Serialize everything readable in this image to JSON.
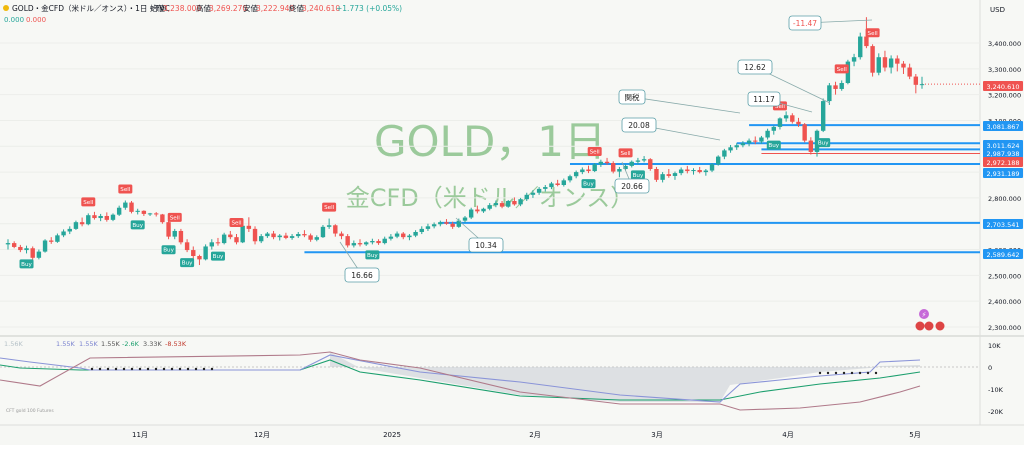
{
  "header": {
    "symbol": "GOLD",
    "title": "GOLD・金CFD（米ドル／オンス）・1日・TVC",
    "ohlc": [
      {
        "label": "始値",
        "value": "3,238.000"
      },
      {
        "label": "高値",
        "value": "3,269.270"
      },
      {
        "label": "安値",
        "value": "3,222.940"
      },
      {
        "label": "終値",
        "value": "3,240.610"
      }
    ],
    "change": "+1.773 (+0.05%)",
    "sub1": "0.000",
    "sub2": "0.000"
  },
  "currency": "USD",
  "watermark": {
    "main": "GOLD，1日",
    "sub": "金CFD（米ドル／オンス）"
  },
  "colors": {
    "up": "#26a69a",
    "down": "#ef5350",
    "line": "#2196f3",
    "watermark": "#8cc28c",
    "indicator_long": "#8a94d8",
    "indicator_short": "#b07a8a",
    "indicator_net": "#1c9f6e"
  },
  "y_axis_ticks": [
    "3,400.000",
    "3,300.000",
    "3,200.000",
    "3,100.000",
    "3,000.000",
    "2,900.000",
    "2,800.000",
    "2,700.000",
    "2,600.000",
    "2,500.000",
    "2,400.000",
    "2,300.000"
  ],
  "price_tags": [
    {
      "text": "3,240.610",
      "color": "#ef5350"
    },
    {
      "text": "3,081.867",
      "color": "#2196f3"
    },
    {
      "text": "3,011.624",
      "color": "#2196f3"
    },
    {
      "text": "2,987.938",
      "color": "#2196f3"
    },
    {
      "text": "2,972.188",
      "color": "#ef5350"
    },
    {
      "text": "2,931.189",
      "color": "#2196f3"
    },
    {
      "text": "2,703.541",
      "color": "#2196f3"
    },
    {
      "text": "2,589.642",
      "color": "#2196f3"
    }
  ],
  "x_axis_labels": [
    "11月",
    "12月",
    "2025",
    "2月",
    "3月",
    "4月",
    "5月"
  ],
  "callouts": [
    {
      "text": "-11.47",
      "color": "#ef5350"
    },
    {
      "text": "12.62",
      "color": "#222"
    },
    {
      "text": "11.17",
      "color": "#222"
    },
    {
      "text": "関税",
      "color": "#222"
    },
    {
      "text": "20.08",
      "color": "#222"
    },
    {
      "text": "20.66",
      "color": "#222"
    },
    {
      "text": "10.34",
      "color": "#222"
    },
    {
      "text": "16.66",
      "color": "#222"
    }
  ],
  "signals": {
    "buy": "Buy",
    "sell": "Sell"
  },
  "indicator": {
    "legend": [
      "1.55K",
      "1.55K",
      "1.55K",
      "-2.6K",
      "3.33K",
      "-8.53K"
    ],
    "legend_faint": "1.56K",
    "source": "CFT gold 100 Futures",
    "ticks": [
      "10K",
      "0",
      "-10K",
      "-20K"
    ]
  },
  "chart_data": {
    "type": "candlestick",
    "interval": "1D",
    "ylim": [
      2290,
      3500
    ],
    "price_lines": [
      3081.867,
      3011.624,
      2987.938,
      2972.188,
      2931.189,
      2703.541,
      2589.642
    ],
    "last_price": 3240.61,
    "candles": [
      {
        "o": 2620,
        "h": 2640,
        "l": 2600,
        "c": 2625
      },
      {
        "o": 2625,
        "h": 2632,
        "l": 2605,
        "c": 2610
      },
      {
        "o": 2610,
        "h": 2618,
        "l": 2590,
        "c": 2598
      },
      {
        "o": 2598,
        "h": 2615,
        "l": 2585,
        "c": 2605
      },
      {
        "o": 2605,
        "h": 2612,
        "l": 2560,
        "c": 2568
      },
      {
        "o": 2568,
        "h": 2600,
        "l": 2562,
        "c": 2592
      },
      {
        "o": 2592,
        "h": 2640,
        "l": 2588,
        "c": 2635
      },
      {
        "o": 2635,
        "h": 2648,
        "l": 2622,
        "c": 2630
      },
      {
        "o": 2630,
        "h": 2662,
        "l": 2626,
        "c": 2655
      },
      {
        "o": 2655,
        "h": 2678,
        "l": 2648,
        "c": 2670
      },
      {
        "o": 2670,
        "h": 2690,
        "l": 2660,
        "c": 2680
      },
      {
        "o": 2680,
        "h": 2712,
        "l": 2676,
        "c": 2706
      },
      {
        "o": 2706,
        "h": 2724,
        "l": 2690,
        "c": 2698
      },
      {
        "o": 2698,
        "h": 2740,
        "l": 2694,
        "c": 2733
      },
      {
        "o": 2733,
        "h": 2746,
        "l": 2716,
        "c": 2722
      },
      {
        "o": 2722,
        "h": 2738,
        "l": 2710,
        "c": 2730
      },
      {
        "o": 2730,
        "h": 2744,
        "l": 2708,
        "c": 2715
      },
      {
        "o": 2715,
        "h": 2740,
        "l": 2710,
        "c": 2735
      },
      {
        "o": 2735,
        "h": 2770,
        "l": 2730,
        "c": 2762
      },
      {
        "o": 2762,
        "h": 2790,
        "l": 2754,
        "c": 2782
      },
      {
        "o": 2782,
        "h": 2788,
        "l": 2740,
        "c": 2746
      },
      {
        "o": 2746,
        "h": 2758,
        "l": 2736,
        "c": 2750
      },
      {
        "o": 2750,
        "h": 2752,
        "l": 2730,
        "c": 2738
      },
      {
        "o": 2738,
        "h": 2742,
        "l": 2730,
        "c": 2740
      },
      {
        "o": 2740,
        "h": 2745,
        "l": 2728,
        "c": 2736
      },
      {
        "o": 2736,
        "h": 2738,
        "l": 2700,
        "c": 2706
      },
      {
        "o": 2706,
        "h": 2712,
        "l": 2640,
        "c": 2650
      },
      {
        "o": 2650,
        "h": 2680,
        "l": 2640,
        "c": 2672
      },
      {
        "o": 2672,
        "h": 2680,
        "l": 2620,
        "c": 2628
      },
      {
        "o": 2628,
        "h": 2640,
        "l": 2590,
        "c": 2598
      },
      {
        "o": 2598,
        "h": 2612,
        "l": 2560,
        "c": 2575
      },
      {
        "o": 2575,
        "h": 2580,
        "l": 2540,
        "c": 2562
      },
      {
        "o": 2562,
        "h": 2620,
        "l": 2558,
        "c": 2612
      },
      {
        "o": 2612,
        "h": 2640,
        "l": 2600,
        "c": 2628
      },
      {
        "o": 2628,
        "h": 2645,
        "l": 2615,
        "c": 2625
      },
      {
        "o": 2625,
        "h": 2665,
        "l": 2620,
        "c": 2658
      },
      {
        "o": 2658,
        "h": 2672,
        "l": 2640,
        "c": 2648
      },
      {
        "o": 2648,
        "h": 2660,
        "l": 2620,
        "c": 2628
      },
      {
        "o": 2628,
        "h": 2700,
        "l": 2625,
        "c": 2692
      },
      {
        "o": 2692,
        "h": 2725,
        "l": 2668,
        "c": 2680
      },
      {
        "o": 2680,
        "h": 2690,
        "l": 2620,
        "c": 2632
      },
      {
        "o": 2632,
        "h": 2660,
        "l": 2625,
        "c": 2652
      },
      {
        "o": 2652,
        "h": 2668,
        "l": 2645,
        "c": 2662
      },
      {
        "o": 2662,
        "h": 2672,
        "l": 2640,
        "c": 2648
      },
      {
        "o": 2648,
        "h": 2660,
        "l": 2635,
        "c": 2654
      },
      {
        "o": 2654,
        "h": 2665,
        "l": 2640,
        "c": 2645
      },
      {
        "o": 2645,
        "h": 2660,
        "l": 2638,
        "c": 2652
      },
      {
        "o": 2652,
        "h": 2668,
        "l": 2645,
        "c": 2660
      },
      {
        "o": 2660,
        "h": 2675,
        "l": 2648,
        "c": 2655
      },
      {
        "o": 2655,
        "h": 2662,
        "l": 2630,
        "c": 2638
      },
      {
        "o": 2638,
        "h": 2655,
        "l": 2632,
        "c": 2648
      },
      {
        "o": 2648,
        "h": 2695,
        "l": 2645,
        "c": 2688
      },
      {
        "o": 2688,
        "h": 2720,
        "l": 2680,
        "c": 2694
      },
      {
        "o": 2694,
        "h": 2698,
        "l": 2650,
        "c": 2662
      },
      {
        "o": 2662,
        "h": 2670,
        "l": 2640,
        "c": 2652
      },
      {
        "o": 2652,
        "h": 2660,
        "l": 2608,
        "c": 2616
      },
      {
        "o": 2616,
        "h": 2635,
        "l": 2608,
        "c": 2625
      },
      {
        "o": 2625,
        "h": 2640,
        "l": 2612,
        "c": 2620
      },
      {
        "o": 2620,
        "h": 2632,
        "l": 2614,
        "c": 2628
      },
      {
        "o": 2628,
        "h": 2642,
        "l": 2620,
        "c": 2633
      },
      {
        "o": 2633,
        "h": 2640,
        "l": 2618,
        "c": 2625
      },
      {
        "o": 2625,
        "h": 2650,
        "l": 2620,
        "c": 2642
      },
      {
        "o": 2642,
        "h": 2660,
        "l": 2635,
        "c": 2650
      },
      {
        "o": 2650,
        "h": 2670,
        "l": 2644,
        "c": 2662
      },
      {
        "o": 2662,
        "h": 2668,
        "l": 2640,
        "c": 2648
      },
      {
        "o": 2648,
        "h": 2660,
        "l": 2636,
        "c": 2654
      },
      {
        "o": 2654,
        "h": 2675,
        "l": 2648,
        "c": 2668
      },
      {
        "o": 2668,
        "h": 2690,
        "l": 2660,
        "c": 2680
      },
      {
        "o": 2680,
        "h": 2700,
        "l": 2672,
        "c": 2690
      },
      {
        "o": 2690,
        "h": 2705,
        "l": 2682,
        "c": 2698
      },
      {
        "o": 2698,
        "h": 2712,
        "l": 2690,
        "c": 2706
      },
      {
        "o": 2706,
        "h": 2718,
        "l": 2696,
        "c": 2700
      },
      {
        "o": 2700,
        "h": 2708,
        "l": 2680,
        "c": 2688
      },
      {
        "o": 2688,
        "h": 2720,
        "l": 2684,
        "c": 2712
      },
      {
        "o": 2712,
        "h": 2730,
        "l": 2704,
        "c": 2724
      },
      {
        "o": 2724,
        "h": 2762,
        "l": 2718,
        "c": 2755
      },
      {
        "o": 2755,
        "h": 2770,
        "l": 2740,
        "c": 2748
      },
      {
        "o": 2748,
        "h": 2762,
        "l": 2742,
        "c": 2758
      },
      {
        "o": 2758,
        "h": 2780,
        "l": 2752,
        "c": 2772
      },
      {
        "o": 2772,
        "h": 2790,
        "l": 2764,
        "c": 2780
      },
      {
        "o": 2780,
        "h": 2788,
        "l": 2760,
        "c": 2766
      },
      {
        "o": 2766,
        "h": 2792,
        "l": 2762,
        "c": 2788
      },
      {
        "o": 2788,
        "h": 2802,
        "l": 2770,
        "c": 2775
      },
      {
        "o": 2775,
        "h": 2800,
        "l": 2768,
        "c": 2795
      },
      {
        "o": 2795,
        "h": 2820,
        "l": 2788,
        "c": 2812
      },
      {
        "o": 2812,
        "h": 2830,
        "l": 2800,
        "c": 2820
      },
      {
        "o": 2820,
        "h": 2842,
        "l": 2812,
        "c": 2835
      },
      {
        "o": 2835,
        "h": 2850,
        "l": 2825,
        "c": 2842
      },
      {
        "o": 2842,
        "h": 2862,
        "l": 2834,
        "c": 2856
      },
      {
        "o": 2856,
        "h": 2870,
        "l": 2845,
        "c": 2850
      },
      {
        "o": 2850,
        "h": 2875,
        "l": 2844,
        "c": 2868
      },
      {
        "o": 2868,
        "h": 2890,
        "l": 2860,
        "c": 2884
      },
      {
        "o": 2884,
        "h": 2906,
        "l": 2876,
        "c": 2900
      },
      {
        "o": 2900,
        "h": 2918,
        "l": 2892,
        "c": 2910
      },
      {
        "o": 2910,
        "h": 2925,
        "l": 2896,
        "c": 2904
      },
      {
        "o": 2904,
        "h": 2935,
        "l": 2900,
        "c": 2930
      },
      {
        "o": 2930,
        "h": 2948,
        "l": 2920,
        "c": 2940
      },
      {
        "o": 2940,
        "h": 2955,
        "l": 2928,
        "c": 2935
      },
      {
        "o": 2935,
        "h": 2942,
        "l": 2895,
        "c": 2902
      },
      {
        "o": 2902,
        "h": 2920,
        "l": 2880,
        "c": 2912
      },
      {
        "o": 2912,
        "h": 2930,
        "l": 2906,
        "c": 2924
      },
      {
        "o": 2924,
        "h": 2945,
        "l": 2918,
        "c": 2940
      },
      {
        "o": 2940,
        "h": 2955,
        "l": 2930,
        "c": 2945
      },
      {
        "o": 2945,
        "h": 2962,
        "l": 2938,
        "c": 2950
      },
      {
        "o": 2950,
        "h": 2954,
        "l": 2905,
        "c": 2912
      },
      {
        "o": 2912,
        "h": 2920,
        "l": 2862,
        "c": 2870
      },
      {
        "o": 2870,
        "h": 2900,
        "l": 2860,
        "c": 2892
      },
      {
        "o": 2892,
        "h": 2912,
        "l": 2878,
        "c": 2885
      },
      {
        "o": 2885,
        "h": 2902,
        "l": 2870,
        "c": 2896
      },
      {
        "o": 2896,
        "h": 2918,
        "l": 2888,
        "c": 2910
      },
      {
        "o": 2910,
        "h": 2924,
        "l": 2895,
        "c": 2904
      },
      {
        "o": 2904,
        "h": 2915,
        "l": 2890,
        "c": 2908
      },
      {
        "o": 2908,
        "h": 2920,
        "l": 2895,
        "c": 2900
      },
      {
        "o": 2900,
        "h": 2912,
        "l": 2886,
        "c": 2906
      },
      {
        "o": 2906,
        "h": 2935,
        "l": 2900,
        "c": 2930
      },
      {
        "o": 2930,
        "h": 2965,
        "l": 2925,
        "c": 2960
      },
      {
        "o": 2960,
        "h": 2990,
        "l": 2950,
        "c": 2984
      },
      {
        "o": 2984,
        "h": 3005,
        "l": 2975,
        "c": 2996
      },
      {
        "o": 2996,
        "h": 3012,
        "l": 2986,
        "c": 3004
      },
      {
        "o": 3004,
        "h": 3020,
        "l": 2996,
        "c": 3012
      },
      {
        "o": 3012,
        "h": 3030,
        "l": 3000,
        "c": 3022
      },
      {
        "o": 3022,
        "h": 3038,
        "l": 3008,
        "c": 3018
      },
      {
        "o": 3018,
        "h": 3040,
        "l": 3010,
        "c": 3034
      },
      {
        "o": 3034,
        "h": 3068,
        "l": 3026,
        "c": 3060
      },
      {
        "o": 3060,
        "h": 3080,
        "l": 3045,
        "c": 3075
      },
      {
        "o": 3075,
        "h": 3112,
        "l": 3065,
        "c": 3108
      },
      {
        "o": 3108,
        "h": 3135,
        "l": 3095,
        "c": 3120
      },
      {
        "o": 3120,
        "h": 3128,
        "l": 3088,
        "c": 3095
      },
      {
        "o": 3095,
        "h": 3110,
        "l": 3075,
        "c": 3085
      },
      {
        "o": 3085,
        "h": 3090,
        "l": 3015,
        "c": 3022
      },
      {
        "o": 3022,
        "h": 3035,
        "l": 2968,
        "c": 2978
      },
      {
        "o": 2978,
        "h": 3065,
        "l": 2960,
        "c": 3060
      },
      {
        "o": 3060,
        "h": 3185,
        "l": 3055,
        "c": 3175
      },
      {
        "o": 3175,
        "h": 3245,
        "l": 3160,
        "c": 3236
      },
      {
        "o": 3236,
        "h": 3250,
        "l": 3200,
        "c": 3222
      },
      {
        "o": 3222,
        "h": 3255,
        "l": 3215,
        "c": 3245
      },
      {
        "o": 3245,
        "h": 3335,
        "l": 3240,
        "c": 3328
      },
      {
        "o": 3328,
        "h": 3358,
        "l": 3310,
        "c": 3345
      },
      {
        "o": 3345,
        "h": 3440,
        "l": 3336,
        "c": 3425
      },
      {
        "o": 3425,
        "h": 3500,
        "l": 3380,
        "c": 3388
      },
      {
        "o": 3388,
        "h": 3395,
        "l": 3270,
        "c": 3285
      },
      {
        "o": 3285,
        "h": 3360,
        "l": 3275,
        "c": 3345
      },
      {
        "o": 3345,
        "h": 3370,
        "l": 3290,
        "c": 3305
      },
      {
        "o": 3305,
        "h": 3352,
        "l": 3282,
        "c": 3340
      },
      {
        "o": 3340,
        "h": 3352,
        "l": 3290,
        "c": 3320
      },
      {
        "o": 3320,
        "h": 3330,
        "l": 3280,
        "c": 3305
      },
      {
        "o": 3305,
        "h": 3320,
        "l": 3260,
        "c": 3270
      },
      {
        "o": 3270,
        "h": 3280,
        "l": 3205,
        "c": 3238
      },
      {
        "o": 3238,
        "h": 3269.27,
        "l": 3222.94,
        "c": 3240.61
      }
    ],
    "indicator": {
      "ylim": [
        -26000,
        15000
      ],
      "ticks": [
        10000,
        0,
        -10000,
        -20000
      ]
    }
  }
}
